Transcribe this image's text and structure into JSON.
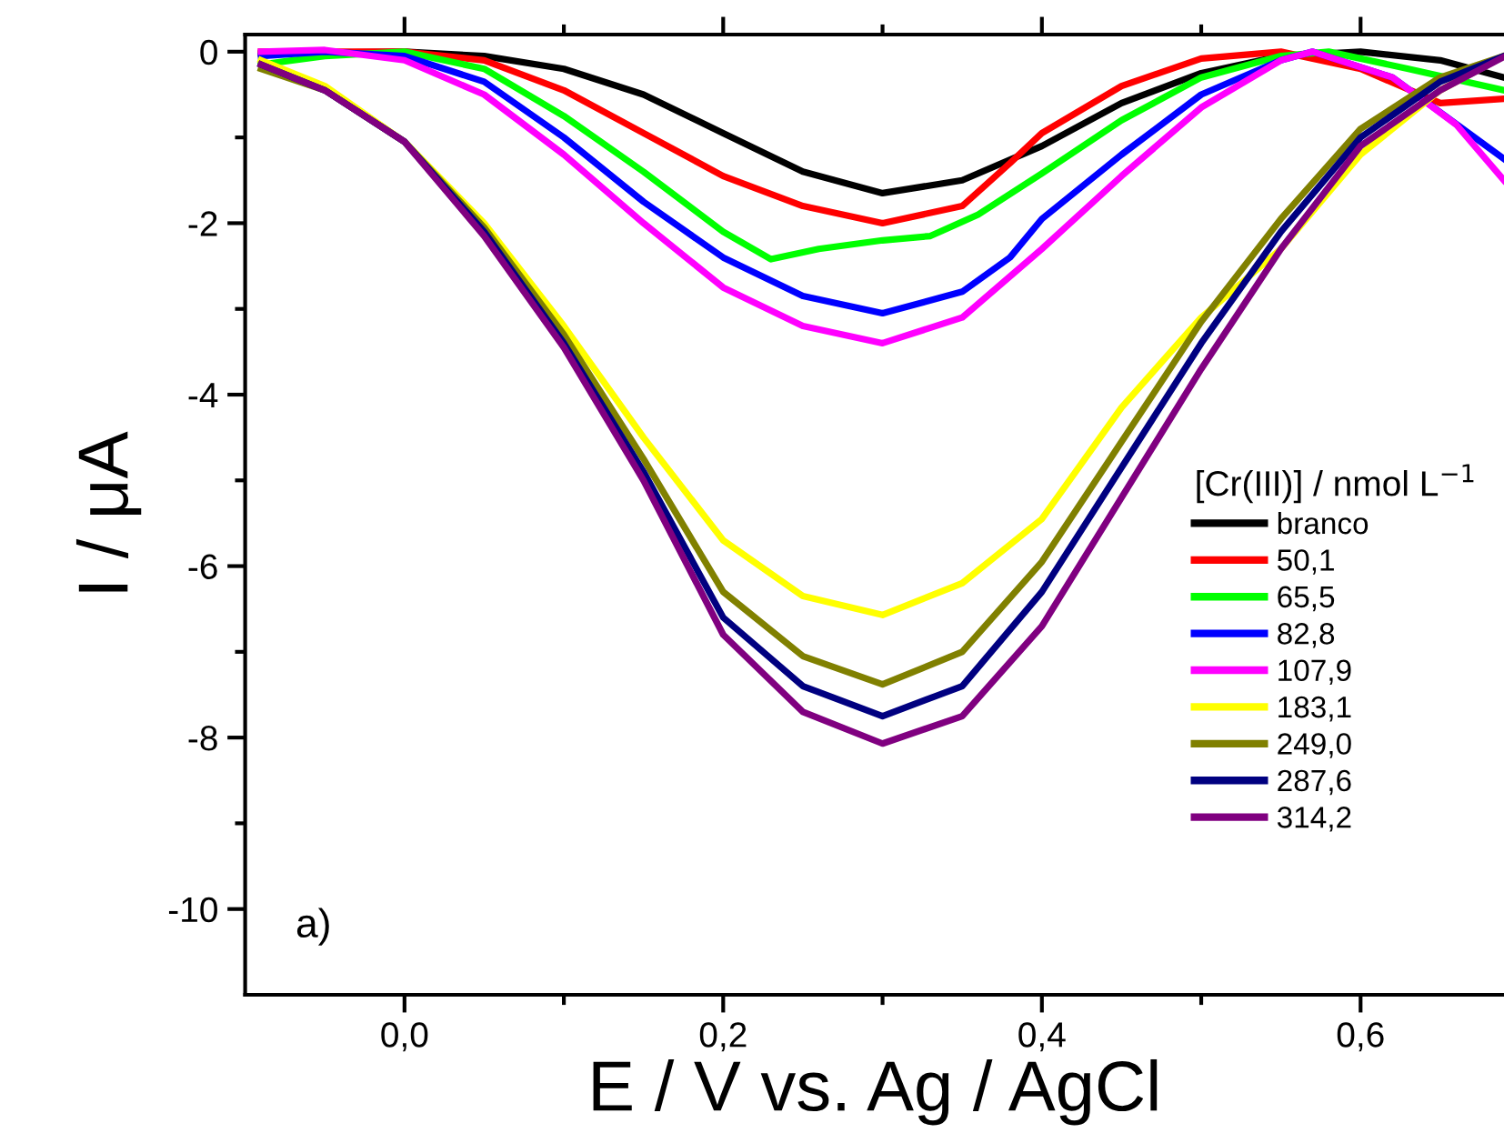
{
  "chart_data": {
    "type": "line",
    "xlabel": "E / V vs. Ag / AgCl",
    "ylabel": "I / μA",
    "legend_title": "[Cr(III)] / nmol L$^{−1}$",
    "annotations": [
      "a)"
    ],
    "x": [
      -0.09,
      -0.05,
      0,
      0.05,
      0.1,
      0.15,
      0.2,
      0.25,
      0.3,
      0.35,
      0.4,
      0.45,
      0.5,
      0.55,
      0.6,
      0.65,
      0.69
    ],
    "xlim": [
      -0.1,
      0.69
    ],
    "ylim": [
      -11,
      0.2
    ],
    "xticks": [
      {
        "value": 0.0,
        "label": "0,0"
      },
      {
        "value": 0.1,
        "label": null
      },
      {
        "value": 0.2,
        "label": "0,2"
      },
      {
        "value": 0.3,
        "label": null
      },
      {
        "value": 0.4,
        "label": "0,4"
      },
      {
        "value": 0.5,
        "label": null
      },
      {
        "value": 0.6,
        "label": "0,6"
      }
    ],
    "yticks": [
      -10,
      {
        "value": -9,
        "label": null
      },
      -8,
      {
        "value": -7,
        "label": null
      },
      -6,
      {
        "value": -5,
        "label": null
      },
      -4,
      {
        "value": -3,
        "label": null
      },
      -2,
      {
        "value": -1,
        "label": null
      },
      0
    ],
    "grid": false,
    "legend": "right",
    "marker": "none",
    "line_style": "solid",
    "series": [
      {
        "name": "branco",
        "color": "#000000",
        "values": [
          -0.02,
          0,
          -0.05,
          -0.2,
          -0.5,
          -0.95,
          -1.4,
          -1.65,
          -1.5,
          -1.1,
          -0.6,
          -0.25,
          -0.05,
          0,
          -0.1,
          -0.3
        ],
        "x": [
          -0.09,
          0,
          0.05,
          0.1,
          0.15,
          0.2,
          0.25,
          0.3,
          0.35,
          0.4,
          0.45,
          0.5,
          0.55,
          0.6,
          0.65,
          0.69
        ]
      },
      {
        "name": "50,1",
        "color": "#ff0000",
        "x": [
          -0.09,
          0,
          0.05,
          0.1,
          0.15,
          0.2,
          0.25,
          0.3,
          0.35,
          0.38,
          0.4,
          0.45,
          0.5,
          0.55,
          0.6,
          0.65,
          0.69
        ],
        "values": [
          0,
          0,
          -0.1,
          -0.45,
          -0.95,
          -1.45,
          -1.8,
          -2.0,
          -1.8,
          -1.3,
          -0.95,
          -0.4,
          -0.08,
          0,
          -0.2,
          -0.6,
          -0.55
        ]
      },
      {
        "name": "65,5",
        "color": "#00ff00",
        "x": [
          -0.09,
          -0.05,
          0,
          0.05,
          0.1,
          0.15,
          0.2,
          0.23,
          0.26,
          0.3,
          0.33,
          0.36,
          0.4,
          0.45,
          0.5,
          0.55,
          0.58,
          0.63,
          0.69
        ],
        "values": [
          -0.15,
          -0.05,
          0,
          -0.2,
          -0.75,
          -1.4,
          -2.1,
          -2.42,
          -2.3,
          -2.2,
          -2.15,
          -1.9,
          -1.42,
          -0.8,
          -0.3,
          -0.05,
          0,
          -0.2,
          -0.45
        ]
      },
      {
        "name": "82,8",
        "color": "#0000ff",
        "x": [
          -0.09,
          -0.05,
          0,
          0.05,
          0.1,
          0.15,
          0.2,
          0.25,
          0.3,
          0.35,
          0.38,
          0.4,
          0.45,
          0.5,
          0.55,
          0.57,
          0.62,
          0.69
        ],
        "values": [
          -0.05,
          0,
          -0.05,
          -0.35,
          -1.0,
          -1.75,
          -2.4,
          -2.85,
          -3.05,
          -2.8,
          -2.4,
          -1.95,
          -1.2,
          -0.5,
          -0.1,
          0,
          -0.3,
          -1.25
        ]
      },
      {
        "name": "107,9",
        "color": "#ff00ff",
        "x": [
          -0.09,
          -0.05,
          0,
          0.05,
          0.1,
          0.15,
          0.2,
          0.25,
          0.3,
          0.35,
          0.4,
          0.45,
          0.5,
          0.55,
          0.57,
          0.62,
          0.66,
          0.69
        ],
        "values": [
          0,
          0.02,
          -0.1,
          -0.5,
          -1.2,
          -2.0,
          -2.75,
          -3.2,
          -3.4,
          -3.1,
          -2.3,
          -1.45,
          -0.65,
          -0.1,
          0,
          -0.3,
          -0.85,
          -1.5
        ]
      },
      {
        "name": "183,1",
        "color": "#ffff00",
        "values": [
          -0.1,
          -0.4,
          -1.05,
          -2.0,
          -3.2,
          -4.5,
          -5.7,
          -6.35,
          -6.57,
          -6.2,
          -5.45,
          -4.15,
          -3.1,
          -2.3,
          -1.2,
          -0.45,
          -0.05
        ]
      },
      {
        "name": "249,0",
        "color": "#808000",
        "values": [
          -0.2,
          -0.45,
          -1.05,
          -2.05,
          -3.3,
          -4.75,
          -6.3,
          -7.05,
          -7.38,
          -7.0,
          -5.95,
          -4.55,
          -3.15,
          -1.95,
          -0.9,
          -0.3,
          -0.05
        ]
      },
      {
        "name": "287,6",
        "color": "#000080",
        "values": [
          -0.15,
          -0.45,
          -1.05,
          -2.1,
          -3.4,
          -4.9,
          -6.6,
          -7.4,
          -7.75,
          -7.4,
          -6.3,
          -4.85,
          -3.4,
          -2.1,
          -1.0,
          -0.35,
          -0.05
        ]
      },
      {
        "name": "314,2",
        "color": "#800080",
        "values": [
          -0.15,
          -0.45,
          -1.05,
          -2.15,
          -3.45,
          -5.0,
          -6.8,
          -7.7,
          -8.07,
          -7.75,
          -6.7,
          -5.2,
          -3.7,
          -2.3,
          -1.1,
          -0.45,
          -0.06
        ]
      }
    ]
  }
}
